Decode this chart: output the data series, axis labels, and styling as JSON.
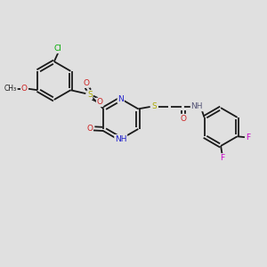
{
  "bg": "#e0e0e0",
  "bond_color": "#1a1a1a",
  "bond_width": 1.3,
  "atom_colors": {
    "C": "#1a1a1a",
    "N": "#2020cc",
    "O": "#cc2020",
    "S": "#aaaa00",
    "Cl": "#00aa00",
    "F": "#cc00cc",
    "H": "#555577"
  },
  "font_size": 6.5,
  "xlim": [
    0,
    10
  ],
  "ylim": [
    0,
    10
  ]
}
